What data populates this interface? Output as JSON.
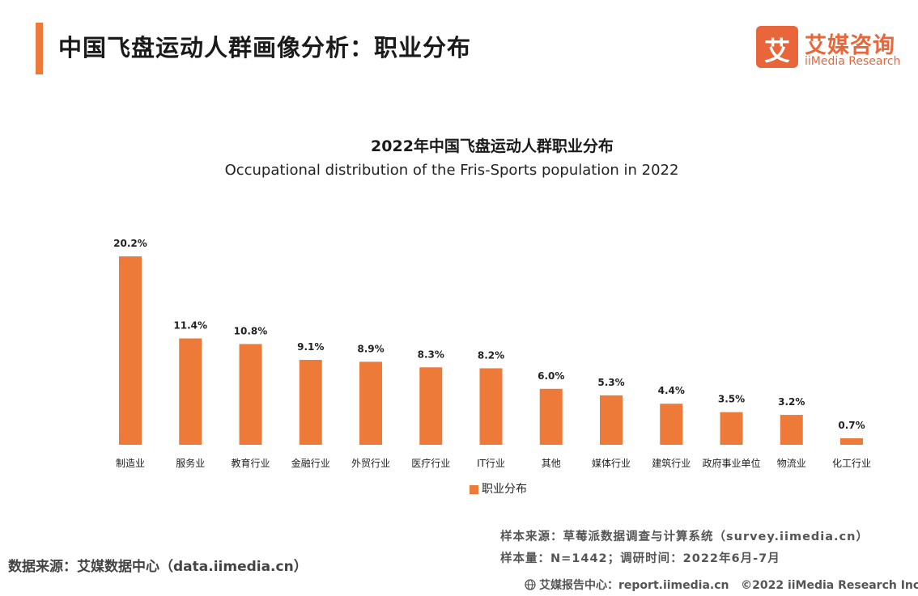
{
  "header": {
    "title": "中国飞盘运动人群画像分析：职业分布"
  },
  "logo": {
    "glyph": "艾",
    "name_cn": "艾媒咨询",
    "name_en": "iiMedia Research",
    "color": "#e8663a"
  },
  "chart_data": {
    "type": "bar",
    "title": "2022年中国飞盘运动人群职业分布",
    "subtitle": "Occupational distribution of the Fris-Sports population in 2022",
    "categories": [
      "制造业",
      "服务业",
      "教育行业",
      "金融行业",
      "外贸行业",
      "医疗行业",
      "IT行业",
      "其他",
      "媒体行业",
      "建筑行业",
      "政府事业单位",
      "物流业",
      "化工行业"
    ],
    "series": [
      {
        "name": "职业分布",
        "values": [
          20.2,
          11.4,
          10.8,
          9.1,
          8.9,
          8.3,
          8.2,
          6.0,
          5.3,
          4.4,
          3.5,
          3.2,
          0.7
        ],
        "labels": [
          "20.2%",
          "11.4%",
          "10.8%",
          "9.1%",
          "8.9%",
          "8.3%",
          "8.2%",
          "6.0%",
          "5.3%",
          "4.4%",
          "3.5%",
          "3.2%",
          "0.7%"
        ],
        "color": "#ee7a3a"
      }
    ],
    "unit": "%",
    "ylim": [
      0,
      20.2
    ],
    "grid": false,
    "legend": "bottom-center"
  },
  "sources": {
    "sample_source": "样本来源：草莓派数据调查与计算系统（survey.iimedia.cn）",
    "sample_size": "样本量：N=1442；调研时间：2022年6月-7月",
    "data_source": "数据来源：艾媒数据中心（data.iimedia.cn）"
  },
  "footer": {
    "report_center": "艾媒报告中心：report.iimedia.cn",
    "copyright": "©2022  iiMedia Research  Inc"
  }
}
